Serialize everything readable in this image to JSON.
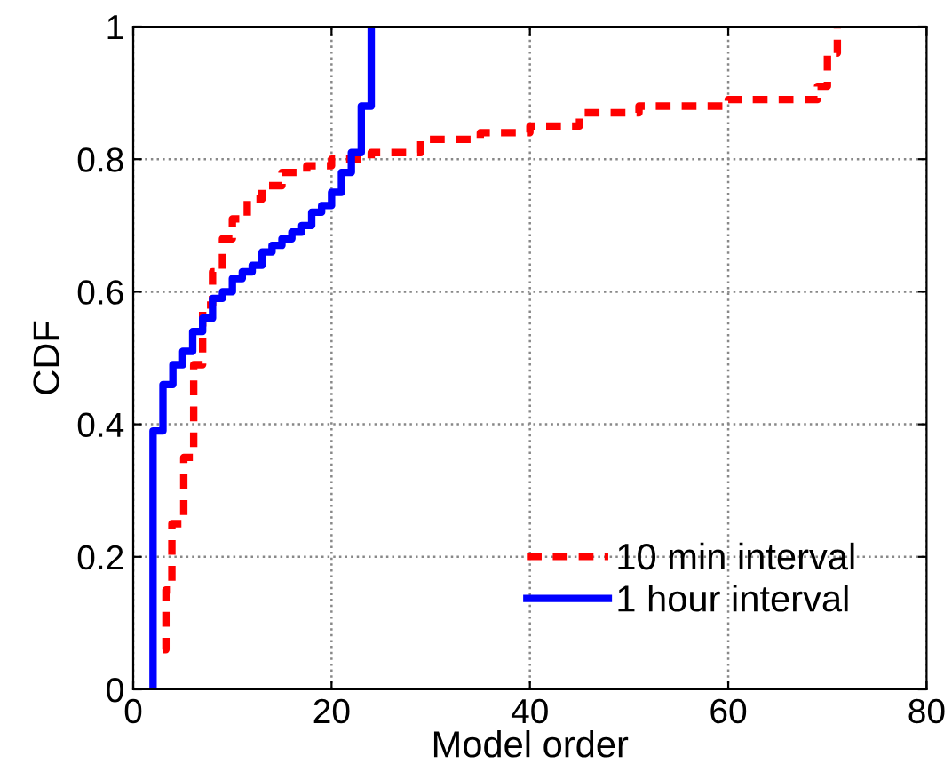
{
  "chart_data": {
    "type": "step",
    "xlabel": "Model order",
    "ylabel": "CDF",
    "xlim": [
      0,
      80
    ],
    "xticks": [
      0,
      20,
      40,
      60,
      80
    ],
    "ylim": [
      0,
      1
    ],
    "yticks": [
      0,
      0.2,
      0.4,
      0.6,
      0.8,
      1
    ],
    "grid": true,
    "legend": "bottom right",
    "series": [
      {
        "name": "10 min interval",
        "color": "#ff0000",
        "line_style": "dashed",
        "x": [
          3,
          3.3,
          3.9,
          5.1,
          6.1,
          7,
          8,
          9,
          10,
          11.5,
          13,
          15,
          17.5,
          20,
          24,
          29,
          35,
          40,
          45,
          51,
          60,
          69,
          70,
          71
        ],
        "values": [
          0.06,
          0.15,
          0.25,
          0.35,
          0.49,
          0.58,
          0.63,
          0.68,
          0.71,
          0.74,
          0.76,
          0.78,
          0.79,
          0.8,
          0.81,
          0.83,
          0.84,
          0.85,
          0.87,
          0.88,
          0.89,
          0.91,
          0.96,
          1.0
        ]
      },
      {
        "name": "1 hour interval",
        "color": "#0000ff",
        "line_style": "solid",
        "x": [
          2,
          2,
          3,
          4,
          5,
          6,
          7,
          8,
          9,
          10,
          11,
          12,
          13,
          14,
          15,
          16,
          17,
          18,
          19,
          20,
          21,
          22,
          23,
          24
        ],
        "values": [
          0,
          0.39,
          0.46,
          0.49,
          0.51,
          0.54,
          0.56,
          0.59,
          0.6,
          0.62,
          0.63,
          0.64,
          0.66,
          0.67,
          0.68,
          0.69,
          0.7,
          0.72,
          0.73,
          0.75,
          0.78,
          0.81,
          0.88,
          1.0
        ]
      }
    ]
  }
}
